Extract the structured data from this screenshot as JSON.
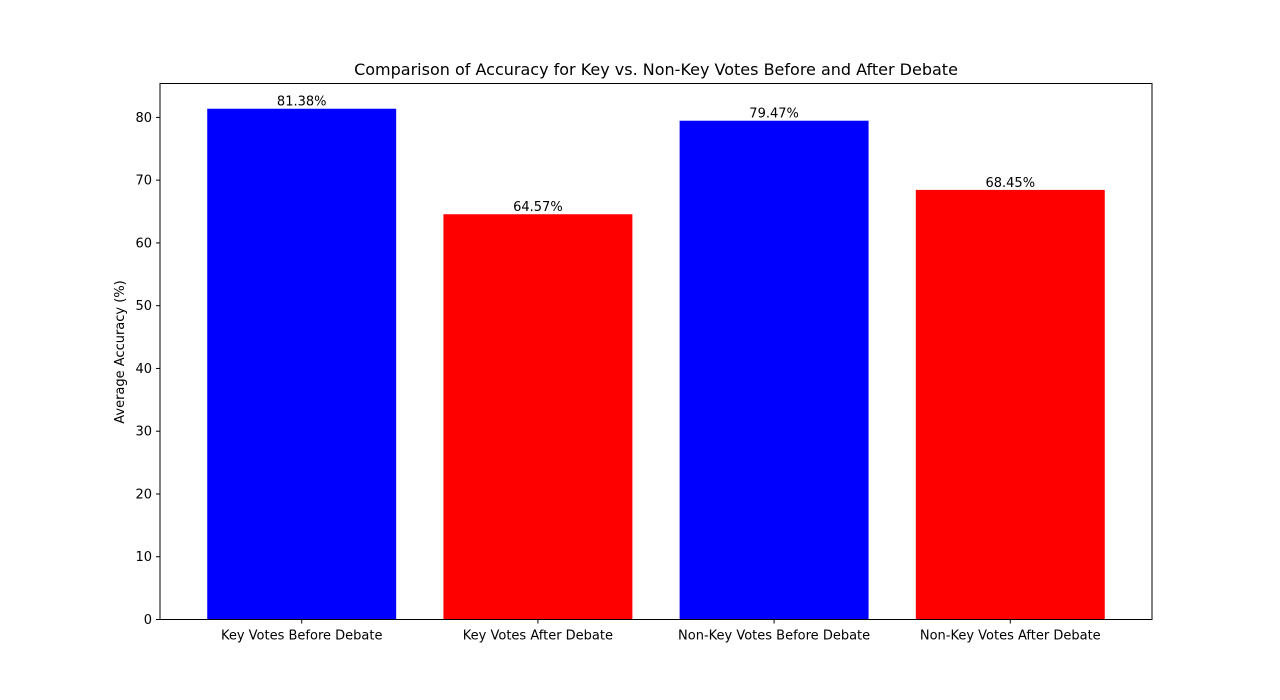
{
  "chart_data": {
    "type": "bar",
    "title": "Comparison of Accuracy for Key vs. Non-Key Votes Before and After Debate",
    "xlabel": "",
    "ylabel": "Average Accuracy (%)",
    "categories": [
      "Key Votes Before Debate",
      "Key Votes After Debate",
      "Non-Key Votes Before Debate",
      "Non-Key Votes After Debate"
    ],
    "values": [
      81.38,
      64.57,
      79.47,
      68.45
    ],
    "value_labels": [
      "81.38%",
      "64.57%",
      "79.47%",
      "68.45%"
    ],
    "bar_colors": [
      "#0000ff",
      "#ff0000",
      "#0000ff",
      "#ff0000"
    ],
    "ylim": [
      0,
      85.4
    ],
    "yticks": [
      0,
      10,
      20,
      30,
      40,
      50,
      60,
      70,
      80
    ],
    "grid": false,
    "legend": "none"
  }
}
